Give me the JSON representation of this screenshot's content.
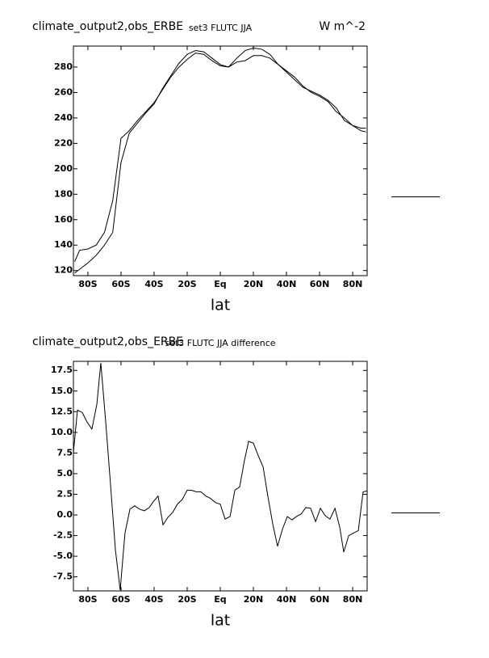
{
  "chart_data": [
    {
      "type": "line",
      "title": "climate_output2,obs_ERBE",
      "subtitle": "set3 FLUTC JJA",
      "units": "W m^-2",
      "xlabel": "lat",
      "x": [
        -88,
        -85,
        -80,
        -75,
        -70,
        -65,
        -60,
        -55,
        -50,
        -45,
        -40,
        -35,
        -30,
        -25,
        -20,
        -15,
        -10,
        -5,
        0,
        5,
        10,
        15,
        20,
        25,
        30,
        35,
        40,
        45,
        50,
        55,
        60,
        65,
        70,
        75,
        80,
        85,
        88
      ],
      "series": [
        {
          "color": "#000000",
          "values": [
            127,
            136,
            137,
            140,
            150,
            175,
            224,
            230,
            238,
            245,
            252,
            262,
            272,
            280,
            286,
            291,
            290,
            285,
            281,
            280,
            284,
            285,
            289,
            289,
            287,
            282,
            277,
            272,
            265,
            260,
            257,
            253,
            245,
            240,
            234,
            232,
            232
          ]
        },
        {
          "color": "#000000",
          "values": [
            118,
            121,
            126,
            132,
            140,
            150,
            205,
            228,
            236,
            244,
            251,
            263,
            273,
            283,
            290,
            293,
            292,
            287,
            282,
            280,
            287,
            293,
            295,
            294,
            290,
            282,
            276,
            270,
            264,
            261,
            258,
            254,
            248,
            238,
            234,
            230,
            229
          ]
        }
      ],
      "xlim": [
        -88.75,
        88.75
      ],
      "ylim": [
        116,
        296.5
      ],
      "xticks": [
        {
          "value": -80,
          "label": "80S"
        },
        {
          "value": -60,
          "label": "60S"
        },
        {
          "value": -40,
          "label": "40S"
        },
        {
          "value": -20,
          "label": "20S"
        },
        {
          "value": 0,
          "label": "Eq"
        },
        {
          "value": 20,
          "label": "20N"
        },
        {
          "value": 40,
          "label": "40N"
        },
        {
          "value": 60,
          "label": "60N"
        },
        {
          "value": 80,
          "label": "80N"
        }
      ],
      "yticks": [
        120,
        140,
        160,
        180,
        200,
        220,
        240,
        260,
        280
      ]
    },
    {
      "type": "line",
      "title": "climate_output2,obs_ERBE",
      "subtitle": "set3 FLUTC JJA difference",
      "xlabel": "lat",
      "x": [
        -88.8,
        -86.3,
        -83.4,
        -80.5,
        -77.6,
        -74.6,
        -72.2,
        -69.3,
        -66.3,
        -63.4,
        -60.5,
        -57.6,
        -54.6,
        -51.7,
        -48.8,
        -45.9,
        -42.9,
        -40.5,
        -37.6,
        -34.6,
        -31.7,
        -28.8,
        -25.9,
        -22.9,
        -20,
        -17.6,
        -14.6,
        -11.7,
        -8.8,
        -5.9,
        -2.9,
        0,
        2.9,
        5.9,
        8.8,
        11.7,
        14.6,
        17.1,
        20,
        22.9,
        25.9,
        28.8,
        31.7,
        34.6,
        37.6,
        40.5,
        43.4,
        45.9,
        48.8,
        51.7,
        54.6,
        57.6,
        60.5,
        63.4,
        66.3,
        69.3,
        72.2,
        74.6,
        77.6,
        80.5,
        83.4,
        86.3,
        88.8
      ],
      "series": [
        {
          "color": "#000000",
          "values": [
            7.5,
            12.7,
            12.4,
            11.25,
            10.4,
            13.4,
            18.4,
            11.4,
            3.6,
            -4.2,
            -9.1,
            -2.2,
            0.7,
            1.1,
            0.7,
            0.5,
            0.9,
            1.6,
            2.3,
            -1.2,
            -0.3,
            0.3,
            1.3,
            1.9,
            3.0,
            3.0,
            2.8,
            2.8,
            2.3,
            2.0,
            1.5,
            1.3,
            -0.5,
            -0.2,
            3.0,
            3.4,
            6.6,
            8.9,
            8.7,
            7.2,
            5.8,
            2.2,
            -1.1,
            -3.8,
            -1.7,
            -0.2,
            -0.6,
            -0.2,
            0.1,
            0.9,
            0.8,
            -0.8,
            0.8,
            -0.1,
            -0.5,
            0.8,
            -1.5,
            -4.5,
            -2.5,
            -2.2,
            -1.9,
            2.8,
            2.9
          ]
        }
      ],
      "xlim": [
        -88.75,
        88.75
      ],
      "ylim": [
        -9.2,
        18.6
      ],
      "xticks": [
        {
          "value": -80,
          "label": "80S"
        },
        {
          "value": -60,
          "label": "60S"
        },
        {
          "value": -40,
          "label": "40S"
        },
        {
          "value": -20,
          "label": "20S"
        },
        {
          "value": 0,
          "label": "Eq"
        },
        {
          "value": 20,
          "label": "20N"
        },
        {
          "value": 40,
          "label": "40N"
        },
        {
          "value": 60,
          "label": "60N"
        },
        {
          "value": 80,
          "label": "80N"
        }
      ],
      "yticks": [
        17.5,
        {
          "value": 15,
          "label": "15.0"
        },
        12.5,
        {
          "value": 10,
          "label": "10.0"
        },
        7.5,
        {
          "value": 5,
          "label": "5.0"
        },
        2.5,
        {
          "value": 0,
          "label": "0.0"
        },
        -2.5,
        {
          "value": -5,
          "label": "-5.0"
        },
        -7.5
      ]
    }
  ]
}
